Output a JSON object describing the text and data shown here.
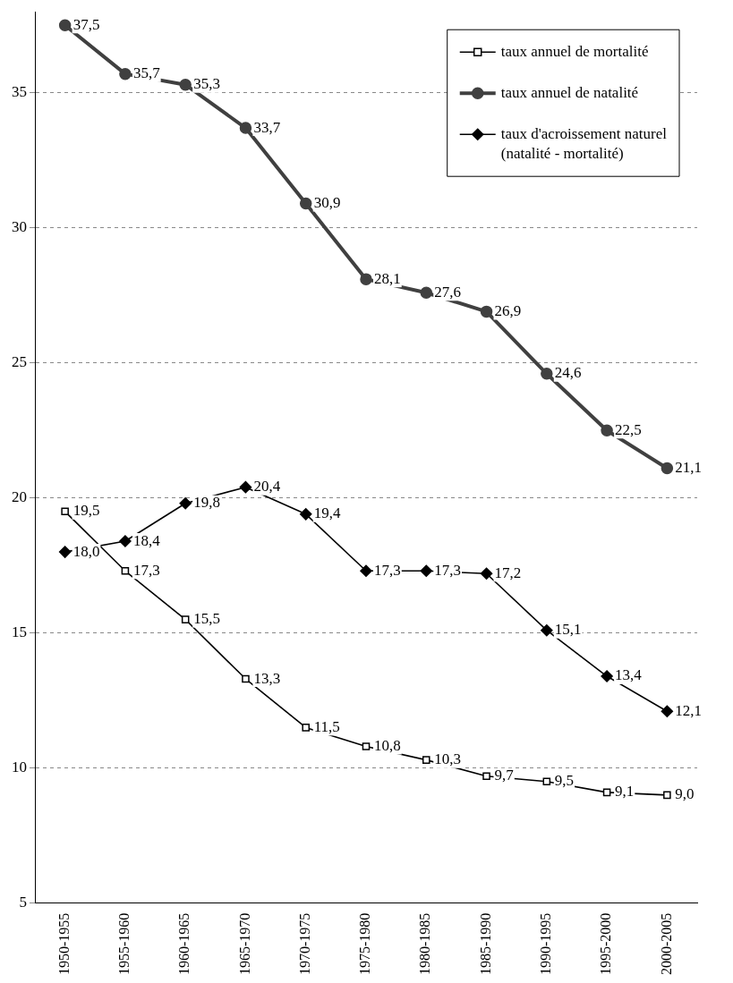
{
  "chart_data": {
    "type": "line",
    "categories": [
      "1950-1955",
      "1955-1960",
      "1960-1965",
      "1965-1970",
      "1970-1975",
      "1975-1980",
      "1980-1985",
      "1985-1990",
      "1990-1995",
      "1995-2000",
      "2000-2005"
    ],
    "series": [
      {
        "name": "taux annuel de mortalité",
        "color": "#000000",
        "marker": "square",
        "values": [
          19.5,
          17.3,
          15.5,
          13.3,
          11.5,
          10.8,
          10.3,
          9.7,
          9.5,
          9.1,
          9.0
        ],
        "value_labels": [
          "19,5",
          "17,3",
          "15,5",
          "13,3",
          "11,5",
          "10,8",
          "10,3",
          "9,7",
          "9,5",
          "9,1",
          "9,0"
        ]
      },
      {
        "name": "taux annuel de natalité",
        "color": "#404040",
        "marker": "circle",
        "values": [
          37.5,
          35.7,
          35.3,
          33.7,
          30.9,
          28.1,
          27.6,
          26.9,
          24.6,
          22.5,
          21.1
        ],
        "value_labels": [
          "37,5",
          "35,7",
          "35,3",
          "33,7",
          "30,9",
          "28,1",
          "27,6",
          "26,9",
          "24,6",
          "22,5",
          "21,1"
        ]
      },
      {
        "name": "taux d'acroissement naturel (natalité - mortalité)",
        "color": "#000000",
        "marker": "diamond",
        "values": [
          18.0,
          18.4,
          19.8,
          20.4,
          19.4,
          17.3,
          17.3,
          17.2,
          15.1,
          13.4,
          12.1
        ],
        "value_labels": [
          "18,0",
          "18,4",
          "19,8",
          "20,4",
          "19,4",
          "17,3",
          "17,3",
          "17,2",
          "15,1",
          "13,4",
          "12,1"
        ]
      }
    ],
    "ylim": [
      5,
      38
    ],
    "yticks": [
      5,
      10,
      15,
      20,
      25,
      30,
      35
    ],
    "grid": "y",
    "legend": "top right",
    "line_style": "solid"
  }
}
